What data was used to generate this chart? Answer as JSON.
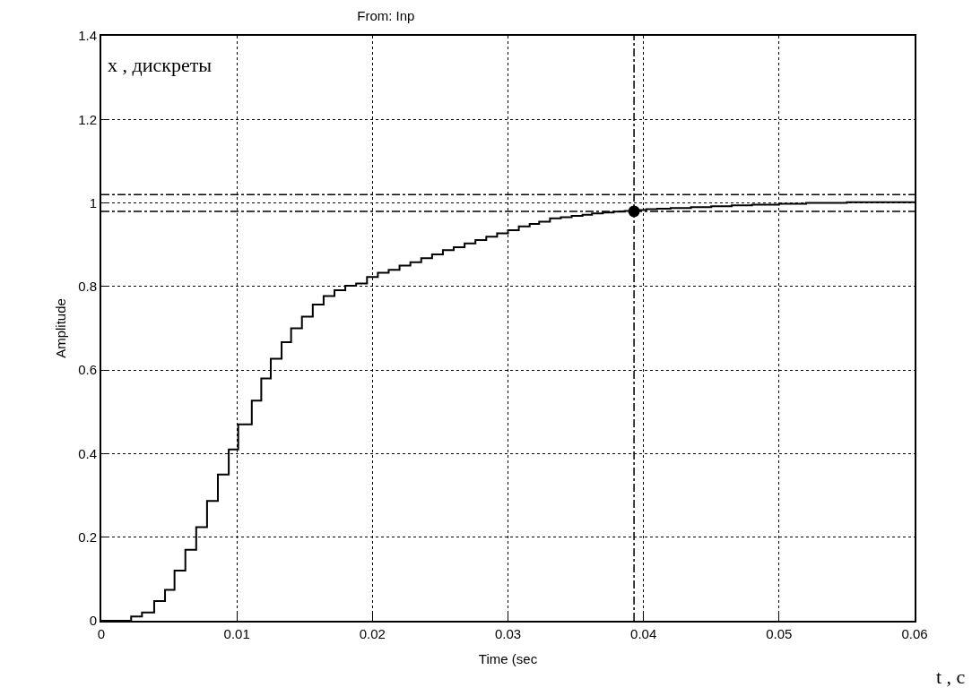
{
  "chart_data": {
    "type": "step",
    "title": "From: Inp",
    "xlabel": "Time (sec",
    "ylabel": "Amplitude",
    "annotations": [
      "x , дискреты",
      "t , с"
    ],
    "series": [
      {
        "color": "#000000",
        "x": [
          0,
          0.0022,
          0.003,
          0.0039,
          0.0047,
          0.0054,
          0.0062,
          0.007,
          0.0078,
          0.0086,
          0.0094,
          0.0101,
          0.0111,
          0.0118,
          0.0125,
          0.0133,
          0.014,
          0.0148,
          0.0156,
          0.0164,
          0.0172,
          0.018,
          0.0188,
          0.0196,
          0.0204,
          0.0212,
          0.022,
          0.0228,
          0.0236,
          0.0244,
          0.0252,
          0.026,
          0.0268,
          0.0276,
          0.0284,
          0.0292,
          0.03,
          0.0308,
          0.0316,
          0.0323,
          0.0331,
          0.0339,
          0.0347,
          0.0355,
          0.0362,
          0.037,
          0.0378,
          0.0386,
          0.0394,
          0.0402,
          0.041,
          0.042,
          0.0435,
          0.045,
          0.0465,
          0.048,
          0.05,
          0.052,
          0.055,
          0.06
        ],
        "values": [
          0,
          0.01,
          0.02,
          0.047,
          0.074,
          0.12,
          0.17,
          0.224,
          0.287,
          0.35,
          0.41,
          0.47,
          0.527,
          0.58,
          0.627,
          0.667,
          0.7,
          0.728,
          0.757,
          0.777,
          0.791,
          0.802,
          0.807,
          0.823,
          0.833,
          0.84,
          0.85,
          0.858,
          0.868,
          0.877,
          0.887,
          0.894,
          0.903,
          0.911,
          0.919,
          0.927,
          0.935,
          0.944,
          0.95,
          0.955,
          0.963,
          0.966,
          0.969,
          0.972,
          0.975,
          0.977,
          0.979,
          0.981,
          0.983,
          0.985,
          0.986,
          0.988,
          0.99,
          0.992,
          0.994,
          0.996,
          0.998,
          1.0,
          1.002,
          1.002
        ]
      },
      {
        "type": "scatter",
        "marker": "circle",
        "color": "#000000",
        "x": [
          0.0393
        ],
        "values": [
          0.98
        ]
      }
    ],
    "xlim": [
      0,
      0.06
    ],
    "xticks": [
      0,
      0.01,
      0.02,
      0.03,
      0.04,
      0.05,
      0.06
    ],
    "ylim": [
      0,
      1.4
    ],
    "yticks": [
      0,
      0.2,
      0.4,
      0.6,
      0.8,
      1,
      1.2,
      1.4
    ],
    "grid": true,
    "line_style": "solid",
    "marker": "none",
    "ref_lines": [
      {
        "axis": "y",
        "value": 1.02,
        "line_style": "dashed",
        "color": "#000000"
      },
      {
        "axis": "y",
        "value": 0.98,
        "line_style": "dashed",
        "color": "#000000"
      },
      {
        "axis": "x",
        "value": 0.0393,
        "line_style": "dashed",
        "color": "#000000"
      }
    ]
  }
}
